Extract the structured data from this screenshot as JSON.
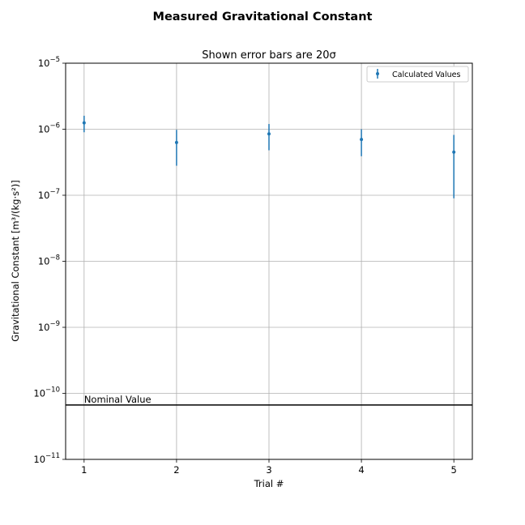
{
  "chart_data": {
    "type": "scatter",
    "suptitle": "Measured Gravitational Constant",
    "title": "Shown error bars are 20σ",
    "xlabel": "Trial #",
    "ylabel": "Gravitational Constant [m³/(kg·s²)]",
    "yscale": "log",
    "xlim": [
      0.8,
      5.2
    ],
    "ylim": [
      1e-11,
      1e-05
    ],
    "grid": true,
    "legend_position": "upper right",
    "x_ticks": [
      1,
      2,
      3,
      4,
      5
    ],
    "x_tick_labels": [
      "1",
      "2",
      "3",
      "4",
      "5"
    ],
    "y_ticks": [
      1e-11,
      1e-10,
      1e-09,
      1e-08,
      1e-07,
      1e-06,
      1e-05
    ],
    "y_tick_labels": [
      {
        "base": "10",
        "exp": "−11"
      },
      {
        "base": "10",
        "exp": "−10"
      },
      {
        "base": "10",
        "exp": "−9"
      },
      {
        "base": "10",
        "exp": "−8"
      },
      {
        "base": "10",
        "exp": "−7"
      },
      {
        "base": "10",
        "exp": "−6"
      },
      {
        "base": "10",
        "exp": "−5"
      }
    ],
    "series": [
      {
        "name": "Calculated Values",
        "color": "#1f77b4",
        "x": [
          1,
          2,
          3,
          4,
          5
        ],
        "y": [
          1.25e-06,
          6.3e-07,
          8.5e-07,
          7e-07,
          4.5e-07
        ],
        "y_low": [
          9e-07,
          2.8e-07,
          4.8e-07,
          3.9e-07,
          9e-08
        ],
        "y_high": [
          1.6e-06,
          9.8e-07,
          1.2e-06,
          1e-06,
          8.2e-07
        ]
      }
    ],
    "reference_line": {
      "label": "Nominal Value",
      "y": 6.674e-11,
      "color": "#000000"
    }
  }
}
